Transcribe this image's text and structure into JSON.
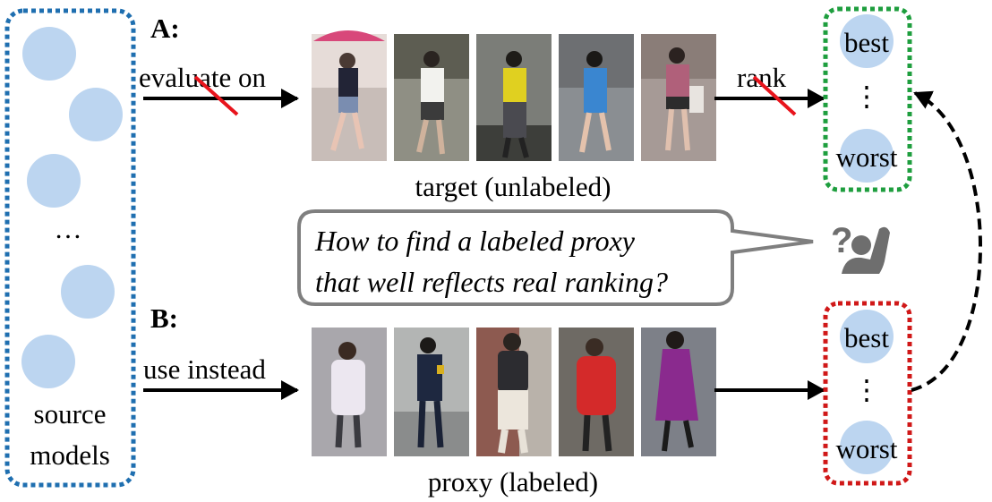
{
  "source_panel": {
    "ellipsis": "…",
    "label_line1": "source",
    "label_line2": "models",
    "circle_color": "#bcd5f0",
    "border_color": "#1f6fb0"
  },
  "row_a": {
    "marker": "A:",
    "arrow_label": "evaluate on",
    "caption": "target (unlabeled)",
    "rank_label": "rank",
    "strike_color": "#e8141c",
    "persons": [
      "person with umbrella",
      "person in white shirt",
      "person in yellow shirt",
      "person in blue dress",
      "person in plaid top"
    ]
  },
  "row_b": {
    "marker": "B:",
    "arrow_label": "use instead",
    "caption": "proxy (labeled)",
    "persons": [
      "person in white coat",
      "person in dark jacket",
      "person with backpack",
      "person in red coat",
      "person in purple coat"
    ]
  },
  "ranking_top": {
    "best": "best",
    "dots": "⋮",
    "worst": "worst",
    "border_color": "#1e9e3e"
  },
  "ranking_bottom": {
    "best": "best",
    "dots": "⋮",
    "worst": "worst",
    "border_color": "#d01818"
  },
  "speech_bubble": {
    "line1": "How to find a labeled proxy",
    "line2": "that well reflects real ranking?"
  },
  "question_icon": {
    "glyph": "?"
  }
}
